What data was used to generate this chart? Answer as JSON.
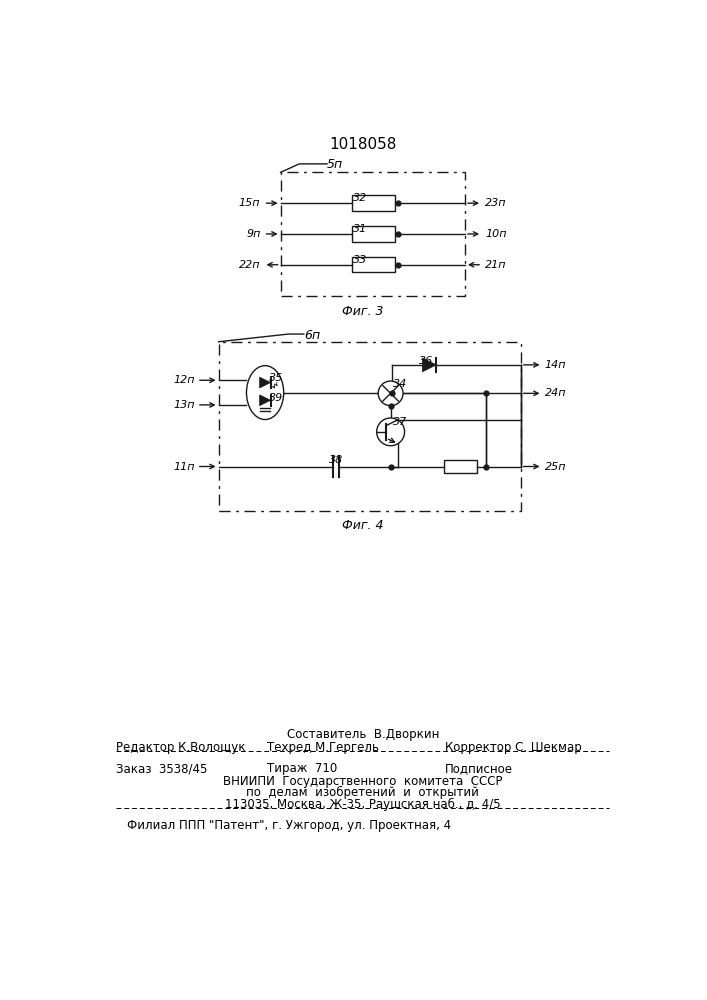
{
  "title": "1018058",
  "bg_color": "#ffffff",
  "fig3_label": "Фиг. 3",
  "fig4_label": "Фиг. 4",
  "color": "#1a1a1a",
  "footer_sestavitel": "Составитель  В.Дворкин",
  "footer_row1_left": "Редактор К.Волощук",
  "footer_row1_mid": "Техред М.Гергель",
  "footer_row1_right": "Корректор С. Шекмар",
  "footer_zakaz": "Заказ  3538/45",
  "footer_tirazh": "Тираж  710",
  "footer_podpisnoe": "Подписное",
  "footer_vniip1": "ВНИИПИ  Государственного  комитета  СССР",
  "footer_vniip2": "по  делам  изобретений  и  открытий",
  "footer_addr": "113035, Москва, Ж-35, Раушская наб., д. 4/5",
  "footer_filial": "Филиал ППП \"Патент\", г. Ужгород, ул. Проектная, 4"
}
